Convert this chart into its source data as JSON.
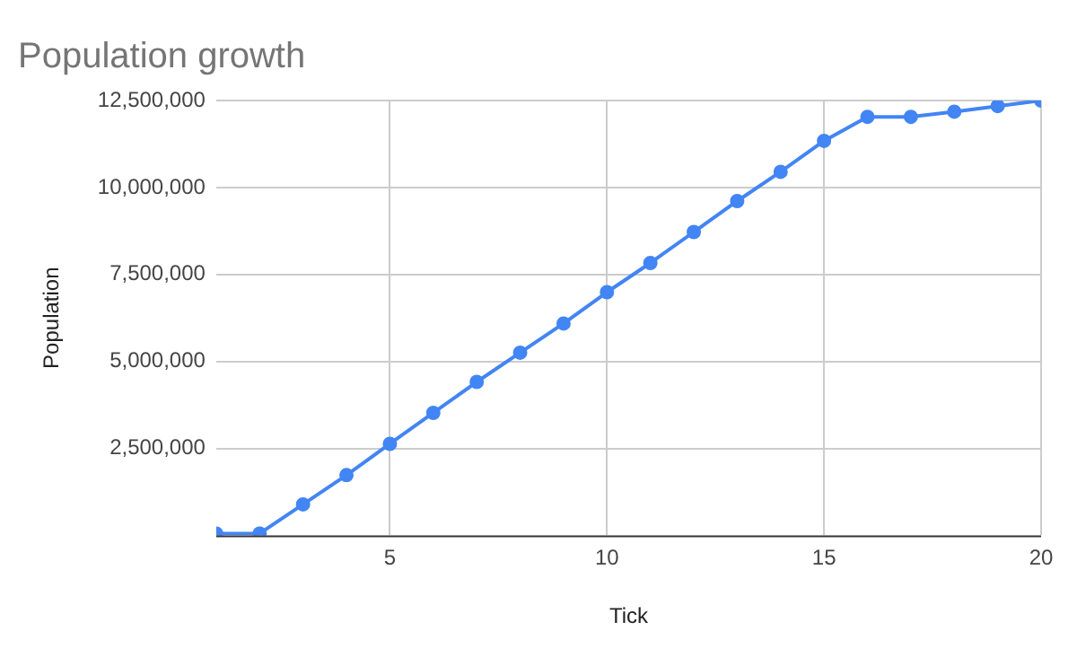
{
  "chart_data": {
    "type": "line",
    "title": "Population growth",
    "xlabel": "Tick",
    "ylabel": "Population",
    "x": [
      1,
      2,
      3,
      4,
      5,
      6,
      7,
      8,
      9,
      10,
      11,
      12,
      13,
      14,
      15,
      16,
      17,
      18,
      19,
      20
    ],
    "series": [
      {
        "color": "#4285f4",
        "values": [
          50000,
          50000,
          890000,
          1730000,
          2630000,
          3520000,
          4410000,
          5250000,
          6090000,
          6990000,
          7830000,
          8720000,
          9610000,
          10450000,
          11340000,
          12030000,
          12030000,
          12180000,
          12340000,
          12500000
        ]
      }
    ],
    "xlim": [
      1,
      20
    ],
    "xticks": [
      5,
      10,
      15,
      20
    ],
    "ylim": [
      0,
      12500000
    ],
    "yticks": [
      {
        "value": 2500000,
        "label": "2,500,000"
      },
      {
        "value": 5000000,
        "label": "5,000,000"
      },
      {
        "value": 7500000,
        "label": "7,500,000"
      },
      {
        "value": 10000000,
        "label": "10,000,000"
      },
      {
        "value": 12500000,
        "label": "12,500,000"
      }
    ],
    "grid": true,
    "marker": "circle",
    "line_style": "solid",
    "legend": false
  }
}
